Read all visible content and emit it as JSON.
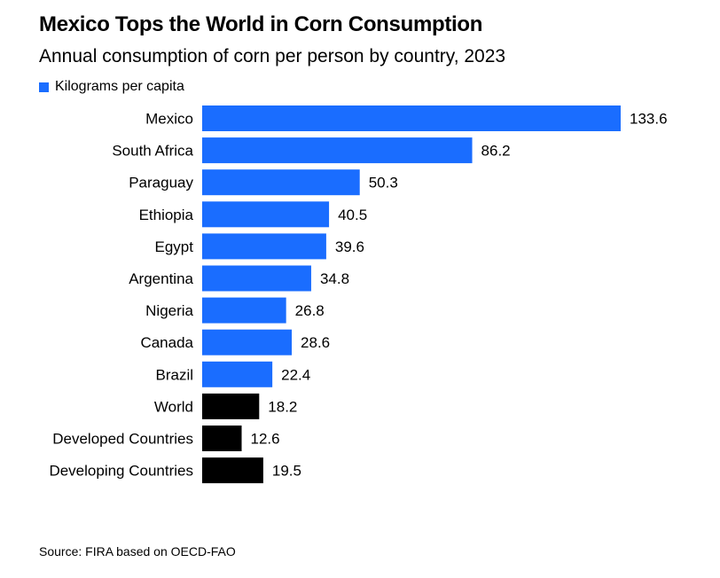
{
  "colors": {
    "country": "#1a6dff",
    "aggregate": "#000000",
    "text": "#000000"
  },
  "chart_data": {
    "type": "bar",
    "orientation": "horizontal",
    "title": "Mexico Tops the World in Corn Consumption",
    "subtitle": "Annual consumption of corn per person by country, 2023",
    "legend": [
      {
        "label": "Kilograms per capita",
        "color_key": "country"
      }
    ],
    "legend_position": "top-left",
    "xlim": [
      0,
      133.6
    ],
    "grid": false,
    "categories": [
      "Mexico",
      "South Africa",
      "Paraguay",
      "Ethiopia",
      "Egypt",
      "Argentina",
      "Nigeria",
      "Canada",
      "Brazil",
      "World",
      "Developed Countries",
      "Developing Countries"
    ],
    "values": [
      133.6,
      86.2,
      50.3,
      40.5,
      39.6,
      34.8,
      26.8,
      28.6,
      22.4,
      18.2,
      12.6,
      19.5
    ],
    "value_labels": [
      "133.6",
      "86.2",
      "50.3",
      "40.5",
      "39.6",
      "34.8",
      "26.8",
      "28.6",
      "22.4",
      "18.2",
      "12.6",
      "19.5"
    ],
    "bar_color_keys": [
      "country",
      "country",
      "country",
      "country",
      "country",
      "country",
      "country",
      "country",
      "country",
      "aggregate",
      "aggregate",
      "aggregate"
    ]
  },
  "source": "Source: FIRA based on OECD-FAO"
}
